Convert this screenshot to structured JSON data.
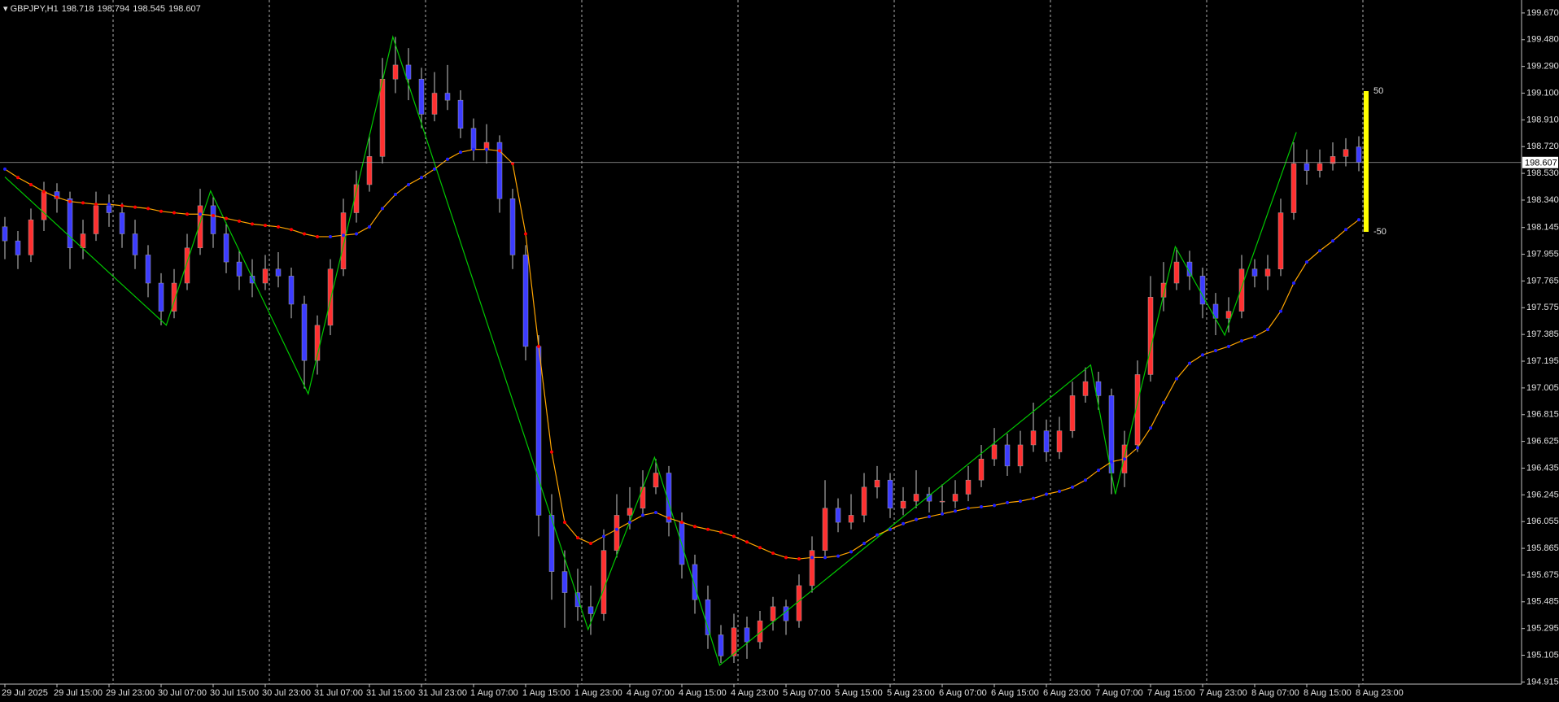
{
  "chart_data": {
    "type": "candlestick",
    "symbol": "GBPJPY,H1",
    "candles": [
      [
        198.15,
        198.22,
        197.92,
        198.05
      ],
      [
        198.05,
        198.12,
        197.85,
        197.95
      ],
      [
        197.95,
        198.28,
        197.9,
        198.2
      ],
      [
        198.2,
        198.47,
        198.12,
        198.4
      ],
      [
        198.4,
        198.46,
        198.25,
        198.35
      ],
      [
        198.35,
        198.4,
        197.85,
        198.0
      ],
      [
        198.0,
        198.2,
        197.92,
        198.1
      ],
      [
        198.1,
        198.4,
        198.05,
        198.3
      ],
      [
        198.3,
        198.38,
        198.15,
        198.25
      ],
      [
        198.25,
        198.32,
        198.0,
        198.1
      ],
      [
        198.1,
        198.2,
        197.85,
        197.95
      ],
      [
        197.95,
        198.02,
        197.65,
        197.75
      ],
      [
        197.75,
        197.82,
        197.45,
        197.55
      ],
      [
        197.55,
        197.85,
        197.5,
        197.75
      ],
      [
        197.75,
        198.1,
        197.7,
        198.0
      ],
      [
        198.0,
        198.42,
        197.95,
        198.3
      ],
      [
        198.3,
        198.36,
        198.0,
        198.1
      ],
      [
        198.1,
        198.18,
        197.82,
        197.9
      ],
      [
        197.9,
        197.98,
        197.7,
        197.8
      ],
      [
        197.8,
        197.92,
        197.65,
        197.75
      ],
      [
        197.75,
        197.95,
        197.7,
        197.85
      ],
      [
        197.85,
        197.97,
        197.72,
        197.8
      ],
      [
        197.8,
        197.86,
        197.5,
        197.6
      ],
      [
        197.6,
        197.66,
        197.0,
        197.2
      ],
      [
        197.2,
        197.52,
        197.1,
        197.45
      ],
      [
        197.45,
        197.92,
        197.38,
        197.85
      ],
      [
        197.85,
        198.35,
        197.8,
        198.25
      ],
      [
        198.25,
        198.55,
        198.18,
        198.45
      ],
      [
        198.45,
        198.8,
        198.4,
        198.65
      ],
      [
        198.65,
        199.35,
        198.6,
        199.2
      ],
      [
        199.2,
        199.5,
        199.1,
        199.3
      ],
      [
        199.3,
        199.42,
        199.05,
        199.2
      ],
      [
        199.2,
        199.28,
        198.85,
        198.95
      ],
      [
        198.95,
        199.25,
        198.9,
        199.1
      ],
      [
        199.1,
        199.3,
        198.98,
        199.05
      ],
      [
        199.05,
        199.12,
        198.78,
        198.85
      ],
      [
        198.85,
        198.92,
        198.62,
        198.7
      ],
      [
        198.7,
        198.88,
        198.6,
        198.75
      ],
      [
        198.75,
        198.8,
        198.25,
        198.35
      ],
      [
        198.35,
        198.42,
        197.85,
        197.95
      ],
      [
        197.95,
        198.02,
        197.2,
        197.3
      ],
      [
        197.3,
        197.38,
        195.95,
        196.1
      ],
      [
        196.1,
        196.25,
        195.5,
        195.7
      ],
      [
        195.7,
        195.85,
        195.3,
        195.55
      ],
      [
        195.55,
        195.72,
        195.35,
        195.45
      ],
      [
        195.45,
        195.6,
        195.25,
        195.4
      ],
      [
        195.4,
        196.0,
        195.35,
        195.85
      ],
      [
        195.85,
        196.25,
        195.8,
        196.1
      ],
      [
        196.1,
        196.3,
        196.0,
        196.15
      ],
      [
        196.15,
        196.42,
        196.1,
        196.3
      ],
      [
        196.3,
        196.5,
        196.25,
        196.4
      ],
      [
        196.4,
        196.45,
        195.95,
        196.05
      ],
      [
        196.05,
        196.12,
        195.65,
        195.75
      ],
      [
        195.75,
        195.82,
        195.4,
        195.5
      ],
      [
        195.5,
        195.6,
        195.15,
        195.25
      ],
      [
        195.25,
        195.32,
        195.05,
        195.1
      ],
      [
        195.1,
        195.4,
        195.05,
        195.3
      ],
      [
        195.3,
        195.38,
        195.08,
        195.2
      ],
      [
        195.2,
        195.42,
        195.15,
        195.35
      ],
      [
        195.35,
        195.52,
        195.28,
        195.45
      ],
      [
        195.45,
        195.5,
        195.25,
        195.35
      ],
      [
        195.35,
        195.68,
        195.3,
        195.6
      ],
      [
        195.6,
        195.95,
        195.55,
        195.85
      ],
      [
        195.85,
        196.35,
        195.8,
        196.15
      ],
      [
        196.15,
        196.22,
        195.98,
        196.05
      ],
      [
        196.05,
        196.25,
        196.0,
        196.1
      ],
      [
        196.1,
        196.4,
        196.05,
        196.3
      ],
      [
        196.3,
        196.45,
        196.22,
        196.35
      ],
      [
        196.35,
        196.4,
        196.08,
        196.15
      ],
      [
        196.15,
        196.3,
        196.1,
        196.2
      ],
      [
        196.2,
        196.42,
        196.15,
        196.25
      ],
      [
        196.25,
        196.3,
        196.12,
        196.2
      ],
      [
        196.2,
        196.32,
        196.12,
        196.2
      ],
      [
        196.2,
        196.35,
        196.15,
        196.25
      ],
      [
        196.25,
        196.45,
        196.2,
        196.35
      ],
      [
        196.35,
        196.6,
        196.3,
        196.5
      ],
      [
        196.5,
        196.72,
        196.45,
        196.6
      ],
      [
        196.6,
        196.68,
        196.38,
        196.45
      ],
      [
        196.45,
        196.7,
        196.4,
        196.6
      ],
      [
        196.6,
        196.9,
        196.55,
        196.7
      ],
      [
        196.7,
        196.78,
        196.48,
        196.55
      ],
      [
        196.55,
        196.8,
        196.5,
        196.7
      ],
      [
        196.7,
        197.05,
        196.65,
        196.95
      ],
      [
        196.95,
        197.15,
        196.9,
        197.05
      ],
      [
        197.05,
        197.12,
        196.85,
        196.95
      ],
      [
        196.95,
        197.0,
        196.25,
        196.4
      ],
      [
        196.4,
        196.7,
        196.3,
        196.6
      ],
      [
        196.6,
        197.2,
        196.55,
        197.1
      ],
      [
        197.1,
        197.8,
        197.05,
        197.65
      ],
      [
        197.65,
        197.9,
        197.55,
        197.75
      ],
      [
        197.75,
        198.0,
        197.7,
        197.9
      ],
      [
        197.9,
        197.98,
        197.7,
        197.8
      ],
      [
        197.8,
        197.86,
        197.5,
        197.6
      ],
      [
        197.6,
        197.68,
        197.38,
        197.5
      ],
      [
        197.5,
        197.65,
        197.4,
        197.55
      ],
      [
        197.55,
        197.95,
        197.5,
        197.85
      ],
      [
        197.85,
        197.92,
        197.72,
        197.8
      ],
      [
        197.8,
        197.95,
        197.7,
        197.85
      ],
      [
        197.85,
        198.35,
        197.8,
        198.25
      ],
      [
        198.25,
        198.75,
        198.2,
        198.6
      ],
      [
        198.6,
        198.7,
        198.45,
        198.55
      ],
      [
        198.55,
        198.7,
        198.5,
        198.6
      ],
      [
        198.6,
        198.75,
        198.55,
        198.65
      ],
      [
        198.65,
        198.78,
        198.58,
        198.7
      ],
      [
        198.718,
        198.794,
        198.545,
        198.607
      ]
    ],
    "candle_colors": {
      "up": "#ff3030",
      "down": "#3c3cff",
      "wick": "#c8c8c8"
    },
    "ma": {
      "line_color": "#ffa500",
      "up_color": "#2020ff",
      "down_color": "#ff0000",
      "values": [
        198.56,
        198.5,
        198.45,
        198.4,
        198.36,
        198.33,
        198.32,
        198.31,
        198.31,
        198.3,
        198.29,
        198.28,
        198.26,
        198.25,
        198.24,
        198.24,
        198.23,
        198.21,
        198.19,
        198.17,
        198.16,
        198.15,
        198.13,
        198.1,
        198.08,
        198.08,
        198.09,
        198.1,
        198.15,
        198.28,
        198.38,
        198.45,
        198.5,
        198.56,
        198.63,
        198.68,
        198.7,
        198.7,
        198.69,
        198.6,
        198.1,
        197.3,
        196.55,
        196.05,
        195.94,
        195.9,
        195.95,
        196.0,
        196.05,
        196.1,
        196.12,
        196.08,
        196.05,
        196.02,
        196.0,
        195.98,
        195.95,
        195.91,
        195.87,
        195.83,
        195.8,
        195.79,
        195.8,
        195.8,
        195.81,
        195.84,
        195.9,
        195.96,
        196.0,
        196.04,
        196.07,
        196.09,
        196.11,
        196.13,
        196.15,
        196.16,
        196.17,
        196.19,
        196.2,
        196.22,
        196.25,
        196.27,
        196.3,
        196.35,
        196.42,
        196.48,
        196.5,
        196.58,
        196.72,
        196.9,
        197.07,
        197.18,
        197.24,
        197.27,
        197.3,
        197.34,
        197.37,
        197.42,
        197.55,
        197.75,
        197.9,
        197.98,
        198.05,
        198.13,
        198.2
      ]
    },
    "zigzag": {
      "color": "#00c800",
      "x": [
        0,
        12.4,
        15.8,
        23.3,
        29.8,
        44.8,
        49.9,
        54.9,
        83.4,
        85.3,
        89.9,
        93.7,
        99.2
      ],
      "values": [
        198.504,
        197.451,
        198.405,
        196.963,
        199.5,
        195.288,
        196.511,
        195.034,
        197.168,
        196.25,
        198.009,
        197.38,
        198.822
      ]
    },
    "ylim": [
      194.9,
      199.762
    ],
    "yticks": [
      {
        "value": 199.67,
        "label": "199.670"
      },
      {
        "value": 199.48,
        "label": "199.480"
      },
      {
        "value": 199.29,
        "label": "199.290"
      },
      {
        "value": 199.1,
        "label": "199.100"
      },
      {
        "value": 198.91,
        "label": "198.910"
      },
      {
        "value": 198.72,
        "label": "198.720"
      },
      {
        "value": 198.53,
        "label": "198.530"
      },
      {
        "value": 198.34,
        "label": "198.340"
      },
      {
        "value": 198.145,
        "label": "198.145"
      },
      {
        "value": 197.955,
        "label": "197.955"
      },
      {
        "value": 197.765,
        "label": "197.765"
      },
      {
        "value": 197.575,
        "label": "197.575"
      },
      {
        "value": 197.385,
        "label": "197.385"
      },
      {
        "value": 197.195,
        "label": "197.195"
      },
      {
        "value": 197.005,
        "label": "197.005"
      },
      {
        "value": 196.815,
        "label": "196.815"
      },
      {
        "value": 196.625,
        "label": "196.625"
      },
      {
        "value": 196.435,
        "label": "196.435"
      },
      {
        "value": 196.245,
        "label": "196.245"
      },
      {
        "value": 196.055,
        "label": "196.055"
      },
      {
        "value": 195.865,
        "label": "195.865"
      },
      {
        "value": 195.675,
        "label": "195.675"
      },
      {
        "value": 195.485,
        "label": "195.485"
      },
      {
        "value": 195.295,
        "label": "195.295"
      },
      {
        "value": 195.105,
        "label": "195.105"
      },
      {
        "value": 194.915,
        "label": "194.915"
      }
    ],
    "xticks": [
      {
        "value": 0,
        "label": "29 Jul 2025"
      },
      {
        "value": 4,
        "label": "29 Jul 15:00"
      },
      {
        "value": 8,
        "label": "29 Jul 23:00"
      },
      {
        "value": 12,
        "label": "30 Jul 07:00"
      },
      {
        "value": 16,
        "label": "30 Jul 15:00"
      },
      {
        "value": 20,
        "label": "30 Jul 23:00"
      },
      {
        "value": 24,
        "label": "31 Jul 07:00"
      },
      {
        "value": 28,
        "label": "31 Jul 15:00"
      },
      {
        "value": 32,
        "label": "31 Jul 23:00"
      },
      {
        "value": 36,
        "label": "1 Aug 07:00"
      },
      {
        "value": 40,
        "label": "1 Aug 15:00"
      },
      {
        "value": 44,
        "label": "1 Aug 23:00"
      },
      {
        "value": 48,
        "label": "4 Aug 07:00"
      },
      {
        "value": 52,
        "label": "4 Aug 15:00"
      },
      {
        "value": 56,
        "label": "4 Aug 23:00"
      },
      {
        "value": 60,
        "label": "5 Aug 07:00"
      },
      {
        "value": 64,
        "label": "5 Aug 15:00"
      },
      {
        "value": 68,
        "label": "5 Aug 23:00"
      },
      {
        "value": 72,
        "label": "6 Aug 07:00"
      },
      {
        "value": 76,
        "label": "6 Aug 15:00"
      },
      {
        "value": 80,
        "label": "6 Aug 23:00"
      },
      {
        "value": 84,
        "label": "7 Aug 07:00"
      },
      {
        "value": 88,
        "label": "7 Aug 15:00"
      },
      {
        "value": 92,
        "label": "7 Aug 23:00"
      },
      {
        "value": 96,
        "label": "8 Aug 07:00"
      },
      {
        "value": 100,
        "label": "8 Aug 15:00"
      },
      {
        "value": 104,
        "label": "8 Aug 23:00"
      }
    ],
    "grid": true,
    "price_line": true,
    "oscillator": {
      "color": "#ffff00",
      "ticks": [
        50,
        -50
      ]
    }
  }
}
